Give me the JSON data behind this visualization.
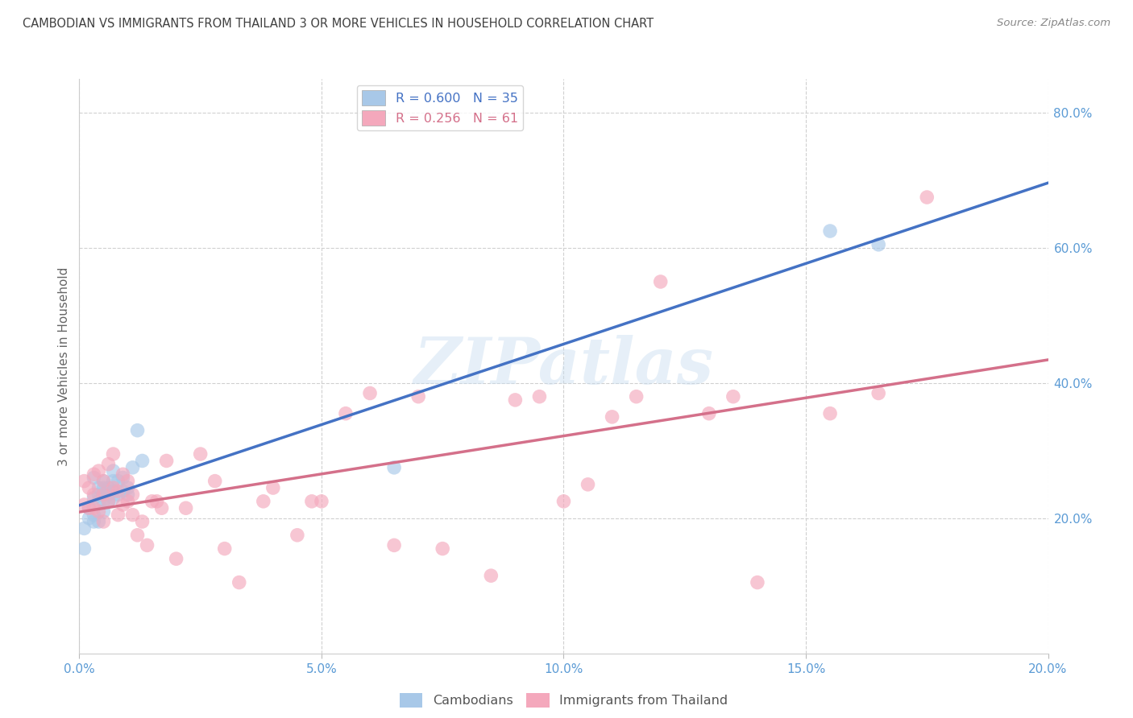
{
  "title": "CAMBODIAN VS IMMIGRANTS FROM THAILAND 3 OR MORE VEHICLES IN HOUSEHOLD CORRELATION CHART",
  "source": "Source: ZipAtlas.com",
  "ylabel": "3 or more Vehicles in Household",
  "xlim": [
    0.0,
    0.2
  ],
  "ylim": [
    -0.02,
    0.88
  ],
  "plot_ylim": [
    0.0,
    0.85
  ],
  "xticks": [
    0.0,
    0.05,
    0.1,
    0.15,
    0.2
  ],
  "yticks": [
    0.2,
    0.4,
    0.6,
    0.8
  ],
  "xtick_labels": [
    "0.0%",
    "5.0%",
    "10.0%",
    "15.0%",
    "20.0%"
  ],
  "ytick_labels": [
    "20.0%",
    "40.0%",
    "60.0%",
    "80.0%"
  ],
  "cambodian_color": "#a8c8e8",
  "thailand_color": "#f4a8bc",
  "cambodian_line_color": "#4472c4",
  "thailand_line_color": "#d4708a",
  "legend_label_1": "R = 0.600   N = 35",
  "legend_label_2": "R = 0.256   N = 61",
  "watermark_text": "ZIPatlas",
  "background_color": "#ffffff",
  "grid_color": "#d0d0d0",
  "title_color": "#404040",
  "axis_tick_color": "#5b9bd5",
  "cambodian_x": [
    0.001,
    0.001,
    0.002,
    0.002,
    0.003,
    0.003,
    0.003,
    0.003,
    0.004,
    0.004,
    0.004,
    0.004,
    0.005,
    0.005,
    0.005,
    0.005,
    0.006,
    0.006,
    0.006,
    0.007,
    0.007,
    0.007,
    0.007,
    0.008,
    0.008,
    0.009,
    0.009,
    0.01,
    0.01,
    0.011,
    0.012,
    0.013,
    0.065,
    0.155,
    0.165
  ],
  "cambodian_y": [
    0.155,
    0.185,
    0.2,
    0.215,
    0.195,
    0.205,
    0.23,
    0.26,
    0.195,
    0.225,
    0.235,
    0.245,
    0.21,
    0.225,
    0.245,
    0.255,
    0.225,
    0.235,
    0.245,
    0.23,
    0.24,
    0.255,
    0.27,
    0.235,
    0.255,
    0.24,
    0.26,
    0.235,
    0.245,
    0.275,
    0.33,
    0.285,
    0.275,
    0.625,
    0.605
  ],
  "thailand_x": [
    0.001,
    0.001,
    0.002,
    0.002,
    0.003,
    0.003,
    0.003,
    0.004,
    0.004,
    0.005,
    0.005,
    0.005,
    0.006,
    0.006,
    0.007,
    0.007,
    0.008,
    0.008,
    0.009,
    0.009,
    0.01,
    0.01,
    0.011,
    0.011,
    0.012,
    0.013,
    0.014,
    0.015,
    0.016,
    0.017,
    0.018,
    0.02,
    0.022,
    0.025,
    0.028,
    0.03,
    0.033,
    0.038,
    0.04,
    0.045,
    0.048,
    0.05,
    0.055,
    0.06,
    0.065,
    0.07,
    0.075,
    0.085,
    0.09,
    0.095,
    0.1,
    0.105,
    0.11,
    0.115,
    0.12,
    0.13,
    0.135,
    0.14,
    0.155,
    0.165,
    0.175
  ],
  "thailand_y": [
    0.22,
    0.255,
    0.215,
    0.245,
    0.215,
    0.235,
    0.265,
    0.21,
    0.27,
    0.195,
    0.235,
    0.255,
    0.225,
    0.28,
    0.245,
    0.295,
    0.205,
    0.24,
    0.22,
    0.265,
    0.225,
    0.255,
    0.205,
    0.235,
    0.175,
    0.195,
    0.16,
    0.225,
    0.225,
    0.215,
    0.285,
    0.14,
    0.215,
    0.295,
    0.255,
    0.155,
    0.105,
    0.225,
    0.245,
    0.175,
    0.225,
    0.225,
    0.355,
    0.385,
    0.16,
    0.38,
    0.155,
    0.115,
    0.375,
    0.38,
    0.225,
    0.25,
    0.35,
    0.38,
    0.55,
    0.355,
    0.38,
    0.105,
    0.355,
    0.385,
    0.675
  ]
}
